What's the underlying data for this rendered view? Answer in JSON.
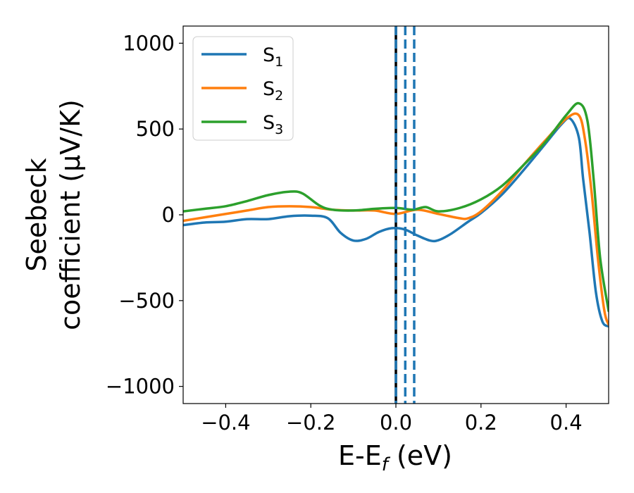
{
  "chart_data": {
    "type": "line",
    "xlabel": {
      "main": "E-E",
      "sub": "f",
      "unit": " (eV)"
    },
    "ylabel": {
      "line1": "Seebeck",
      "line2": "coefficient  (μV/K)"
    },
    "xlim": [
      -0.5,
      0.5
    ],
    "ylim": [
      -1100,
      1100
    ],
    "xticks": [
      -0.4,
      -0.2,
      0.0,
      0.2,
      0.4
    ],
    "xtick_labels": [
      "−0.4",
      "−0.2",
      "0.0",
      "0.2",
      "0.4"
    ],
    "yticks": [
      -1000,
      -500,
      0,
      500,
      1000
    ],
    "ytick_labels": [
      "−1000",
      "−500",
      "0",
      "500",
      "1000"
    ],
    "legend_position": "top-left",
    "vlines": [
      {
        "x": 0.0,
        "color": "#000000",
        "style": "solid"
      },
      {
        "x": 0.0,
        "color": "#1f77b4",
        "style": "dashed"
      },
      {
        "x": 0.022,
        "color": "#1f77b4",
        "style": "dashed"
      },
      {
        "x": 0.043,
        "color": "#1f77b4",
        "style": "dashed"
      }
    ],
    "series": [
      {
        "name": "S",
        "sub": "1",
        "color": "#1f77b4",
        "points": [
          [
            -0.5,
            -60
          ],
          [
            -0.45,
            -45
          ],
          [
            -0.4,
            -40
          ],
          [
            -0.35,
            -25
          ],
          [
            -0.3,
            -25
          ],
          [
            -0.25,
            -8
          ],
          [
            -0.2,
            -5
          ],
          [
            -0.16,
            -20
          ],
          [
            -0.13,
            -105
          ],
          [
            -0.1,
            -150
          ],
          [
            -0.07,
            -140
          ],
          [
            -0.04,
            -100
          ],
          [
            -0.01,
            -78
          ],
          [
            0.02,
            -85
          ],
          [
            0.05,
            -120
          ],
          [
            0.08,
            -150
          ],
          [
            0.1,
            -148
          ],
          [
            0.13,
            -110
          ],
          [
            0.17,
            -40
          ],
          [
            0.2,
            10
          ],
          [
            0.25,
            120
          ],
          [
            0.3,
            260
          ],
          [
            0.35,
            410
          ],
          [
            0.39,
            530
          ],
          [
            0.41,
            560
          ],
          [
            0.43,
            450
          ],
          [
            0.44,
            210
          ],
          [
            0.455,
            -100
          ],
          [
            0.47,
            -450
          ],
          [
            0.485,
            -620
          ],
          [
            0.5,
            -650
          ]
        ]
      },
      {
        "name": "S",
        "sub": "2",
        "color": "#ff7f0e",
        "points": [
          [
            -0.5,
            -35
          ],
          [
            -0.45,
            -15
          ],
          [
            -0.4,
            5
          ],
          [
            -0.35,
            25
          ],
          [
            -0.3,
            45
          ],
          [
            -0.25,
            50
          ],
          [
            -0.2,
            45
          ],
          [
            -0.15,
            30
          ],
          [
            -0.1,
            25
          ],
          [
            -0.05,
            25
          ],
          [
            0.0,
            5
          ],
          [
            0.05,
            30
          ],
          [
            0.1,
            5
          ],
          [
            0.15,
            -20
          ],
          [
            0.17,
            -20
          ],
          [
            0.2,
            20
          ],
          [
            0.25,
            140
          ],
          [
            0.3,
            290
          ],
          [
            0.35,
            430
          ],
          [
            0.4,
            560
          ],
          [
            0.43,
            580
          ],
          [
            0.445,
            430
          ],
          [
            0.46,
            130
          ],
          [
            0.475,
            -260
          ],
          [
            0.49,
            -560
          ],
          [
            0.5,
            -640
          ]
        ]
      },
      {
        "name": "S",
        "sub": "3",
        "color": "#2ca02c",
        "points": [
          [
            -0.5,
            20
          ],
          [
            -0.45,
            35
          ],
          [
            -0.4,
            50
          ],
          [
            -0.35,
            80
          ],
          [
            -0.3,
            115
          ],
          [
            -0.25,
            135
          ],
          [
            -0.22,
            125
          ],
          [
            -0.18,
            55
          ],
          [
            -0.15,
            30
          ],
          [
            -0.1,
            25
          ],
          [
            -0.05,
            35
          ],
          [
            0.0,
            40
          ],
          [
            0.04,
            30
          ],
          [
            0.07,
            45
          ],
          [
            0.1,
            20
          ],
          [
            0.15,
            40
          ],
          [
            0.2,
            90
          ],
          [
            0.25,
            170
          ],
          [
            0.3,
            290
          ],
          [
            0.35,
            420
          ],
          [
            0.4,
            580
          ],
          [
            0.43,
            650
          ],
          [
            0.45,
            550
          ],
          [
            0.465,
            200
          ],
          [
            0.48,
            -250
          ],
          [
            0.5,
            -560
          ]
        ]
      }
    ]
  }
}
